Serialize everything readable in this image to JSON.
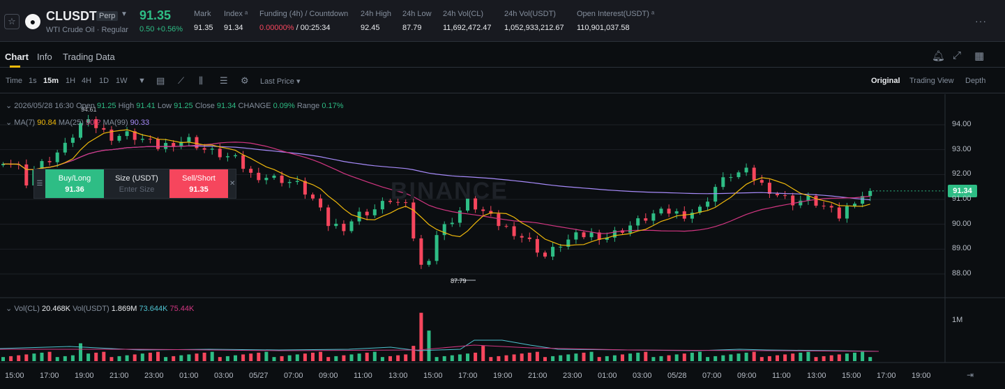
{
  "header": {
    "star_icon": "star-icon",
    "symbol": "CLUSDT",
    "badge": "Perp",
    "subtitle": "WTI Crude Oil · Regular",
    "last_price": "91.35",
    "change": "0.50 +0.56%",
    "stats": {
      "mark_label": "Mark",
      "mark_value": "91.35",
      "index_label": "Index ᵃ",
      "index_value": "91.34",
      "funding_label": "Funding (4h) / Countdown",
      "funding_rate": "0.00000%",
      "countdown": "/ 00:25:34",
      "high_label": "24h High",
      "high_value": "92.45",
      "low_label": "24h Low",
      "low_value": "87.79",
      "volcl_label": "24h Vol(CL)",
      "volcl_value": "11,692,472.47",
      "volusdt_label": "24h Vol(USDT)",
      "volusdt_value": "1,052,933,212.67",
      "oi_label": "Open Interest(USDT) ᵃ",
      "oi_value": "110,901,037.58"
    },
    "colors": {
      "up": "#2ebd85",
      "down": "#f6465d",
      "accent": "#f0b90b"
    }
  },
  "tabs": {
    "chart": "Chart",
    "info": "Info",
    "trading_data": "Trading Data"
  },
  "toolbar": {
    "time": "Time",
    "intervals": [
      "1s",
      "15m",
      "1H",
      "4H",
      "1D",
      "1W"
    ],
    "active_interval": "15m",
    "price_type": "Last Price",
    "views": [
      "Original",
      "Trading View",
      "Depth"
    ],
    "active_view": "Original"
  },
  "legend": {
    "date": "2026/05/28 16:30",
    "open_label": "Open",
    "open": "91.25",
    "high_label": "High",
    "high": "91.41",
    "low_label": "Low",
    "low": "91.25",
    "close_label": "Close",
    "close": "91.34",
    "change_label": "CHANGE",
    "change": "0.09%",
    "range_label": "Range",
    "range": "0.17%",
    "ma7_label": "MA(7)",
    "ma7": "90.84",
    "ma25_label": "MA(25)",
    "ma25": "90.?",
    "ma99_label": "MA(99)",
    "ma99": "90.33"
  },
  "order_widget": {
    "buy_label": "Buy/Long",
    "buy_price": "91.36",
    "size_label": "Size (USDT)",
    "size_placeholder": "Enter Size",
    "sell_label": "Sell/Short",
    "sell_price": "91.35"
  },
  "volume": {
    "vol_label": "Vol(CL)",
    "vol_cl": "20.468K",
    "vol_usdt_label": "Vol(USDT)",
    "vol_usdt": "1.869M",
    "vol_ma1": "73.644K",
    "vol_ma2": "75.44K",
    "axis_label": "1M"
  },
  "chart_data": {
    "type": "candlestick",
    "y_ticks": [
      "94.00",
      "93.00",
      "92.00",
      "91.00",
      "90.00",
      "89.00",
      "88.00"
    ],
    "x_ticks": [
      "15:00",
      "17:00",
      "19:00",
      "21:00",
      "23:00",
      "01:00",
      "03:00",
      "05/27",
      "07:00",
      "09:00",
      "11:00",
      "13:00",
      "15:00",
      "17:00",
      "19:00",
      "21:00",
      "23:00",
      "01:00",
      "03:00",
      "05/28",
      "07:00",
      "09:00",
      "11:00",
      "13:00",
      "15:00",
      "17:00",
      "19:00"
    ],
    "ylim": [
      87.4,
      95.0
    ],
    "high_marker": "94.61",
    "low_marker": "87.79",
    "current_price": "91.34",
    "close_path": [
      [
        0,
        92.6
      ],
      [
        2,
        92.3
      ],
      [
        3,
        91.7
      ],
      [
        4,
        92.2
      ],
      [
        6,
        92.6
      ],
      [
        8,
        93.1
      ],
      [
        10,
        94.0
      ],
      [
        11,
        94.4
      ],
      [
        12,
        93.9
      ],
      [
        14,
        93.5
      ],
      [
        16,
        93.6
      ],
      [
        18,
        93.4
      ],
      [
        20,
        93.1
      ],
      [
        22,
        93.3
      ],
      [
        24,
        93.4
      ],
      [
        26,
        93.0
      ],
      [
        28,
        92.8
      ],
      [
        30,
        92.6
      ],
      [
        32,
        92.0
      ],
      [
        34,
        91.9
      ],
      [
        36,
        91.8
      ],
      [
        38,
        91.6
      ],
      [
        40,
        91.0
      ],
      [
        42,
        90.0
      ],
      [
        44,
        89.9
      ],
      [
        46,
        90.4
      ],
      [
        48,
        90.6
      ],
      [
        50,
        91.0
      ],
      [
        52,
        90.7
      ],
      [
        54,
        88.3
      ],
      [
        55,
        88.7
      ],
      [
        56,
        89.6
      ],
      [
        58,
        90.2
      ],
      [
        60,
        90.9
      ],
      [
        62,
        90.5
      ],
      [
        64,
        90.0
      ],
      [
        66,
        89.7
      ],
      [
        68,
        89.3
      ],
      [
        70,
        88.7
      ],
      [
        72,
        89.2
      ],
      [
        74,
        89.5
      ],
      [
        76,
        89.6
      ],
      [
        78,
        89.5
      ],
      [
        80,
        89.8
      ],
      [
        82,
        90.1
      ],
      [
        84,
        90.4
      ],
      [
        86,
        90.5
      ],
      [
        88,
        90.4
      ],
      [
        90,
        90.6
      ],
      [
        92,
        91.5
      ],
      [
        94,
        92.0
      ],
      [
        96,
        92.1
      ],
      [
        98,
        91.6
      ],
      [
        100,
        91.2
      ],
      [
        102,
        90.9
      ],
      [
        104,
        91.0
      ],
      [
        106,
        90.7
      ],
      [
        108,
        90.3
      ],
      [
        110,
        91.0
      ],
      [
        112,
        91.34
      ]
    ]
  }
}
